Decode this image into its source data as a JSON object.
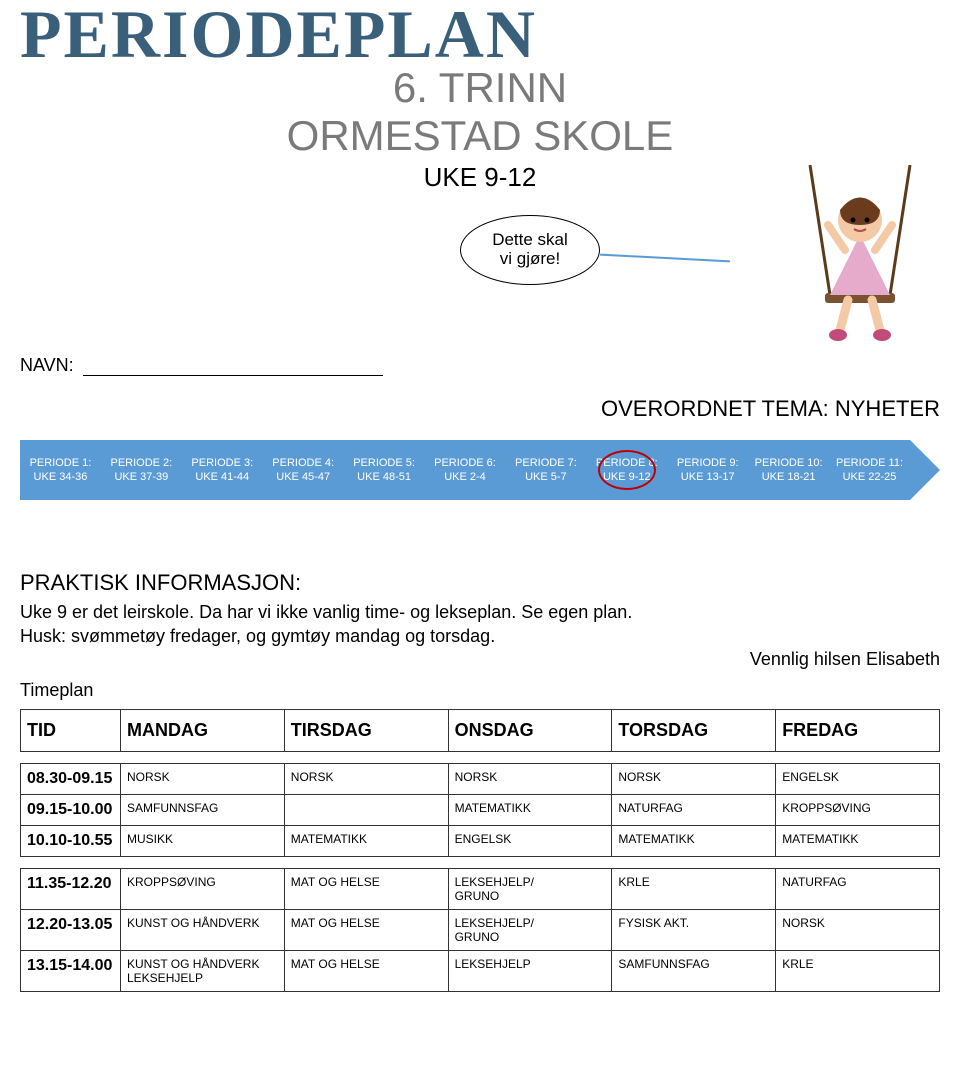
{
  "header": {
    "title": "PERIODEPLAN",
    "grade": "6. TRINN",
    "school": "ORMESTAD SKOLE",
    "weeks": "UKE 9-12"
  },
  "bubble": {
    "line1": "Dette skal",
    "line2": "vi gjøre!"
  },
  "navn_label": "NAVN:",
  "theme": "OVERORDNET TEMA: NYHETER",
  "periods": [
    {
      "label": "PERIODE 1:",
      "weeks": "UKE 34-36"
    },
    {
      "label": "PERIODE 2:",
      "weeks": "UKE 37-39"
    },
    {
      "label": "PERIODE 3:",
      "weeks": "UKE 41-44"
    },
    {
      "label": "PERIODE 4:",
      "weeks": "UKE 45-47"
    },
    {
      "label": "PERIODE 5:",
      "weeks": "UKE 48-51"
    },
    {
      "label": "PERIODE 6:",
      "weeks": "UKE 2-4"
    },
    {
      "label": "PERIODE 7:",
      "weeks": "UKE 5-7"
    },
    {
      "label": "PERIODE 8:",
      "weeks": "UKE 9-12"
    },
    {
      "label": "PERIODE 9:",
      "weeks": "UKE 13-17"
    },
    {
      "label": "PERIODE 10:",
      "weeks": "UKE 18-21"
    },
    {
      "label": "PERIODE 11:",
      "weeks": "UKE 22-25"
    }
  ],
  "circled_period_index": 7,
  "colors": {
    "title_color": "#3a5f7a",
    "subtitle_color": "#7a7a7a",
    "band_color": "#5b9bd5",
    "circle_color": "#c00000",
    "bubble_line_color": "#5b9bd5"
  },
  "info": {
    "heading": "PRAKTISK INFORMASJON:",
    "line1": "Uke 9 er det leirskole. Da har vi ikke vanlig time- og lekseplan. Se egen plan.",
    "line2": "Husk: svømmetøy fredager, og gymtøy mandag og torsdag.",
    "greeting": "Vennlig hilsen Elisabeth"
  },
  "timeplan_label": "Timeplan",
  "timetable": {
    "headers": [
      "TID",
      "MANDAG",
      "TIRSDAG",
      "ONSDAG",
      "TORSDAG",
      "FREDAG"
    ],
    "block1": [
      {
        "tid": "08.30-09.15",
        "cells": [
          "NORSK",
          "NORSK",
          "NORSK",
          "NORSK",
          "ENGELSK"
        ]
      },
      {
        "tid": "09.15-10.00",
        "cells": [
          "SAMFUNNSFAG",
          "",
          "MATEMATIKK",
          "NATURFAG",
          "KROPPSØVING"
        ]
      },
      {
        "tid": "10.10-10.55",
        "cells": [
          "MUSIKK",
          "MATEMATIKK",
          "ENGELSK",
          "MATEMATIKK",
          "MATEMATIKK"
        ]
      }
    ],
    "block2": [
      {
        "tid": "11.35-12.20",
        "cells": [
          "KROPPSØVING",
          "MAT OG HELSE",
          "LEKSEHJELP/\nGRUNO",
          "KRLE",
          "NATURFAG"
        ]
      },
      {
        "tid": "12.20-13.05",
        "cells": [
          "KUNST OG HÅNDVERK",
          "MAT OG HELSE",
          "LEKSEHJELP/\nGRUNO",
          "FYSISK AKT.",
          "NORSK"
        ]
      },
      {
        "tid": "13.15-14.00",
        "cells": [
          "KUNST OG HÅNDVERK\nLEKSEHJELP",
          "MAT OG HELSE",
          "LEKSEHJELP",
          "SAMFUNNSFAG",
          "KRLE"
        ]
      }
    ]
  }
}
